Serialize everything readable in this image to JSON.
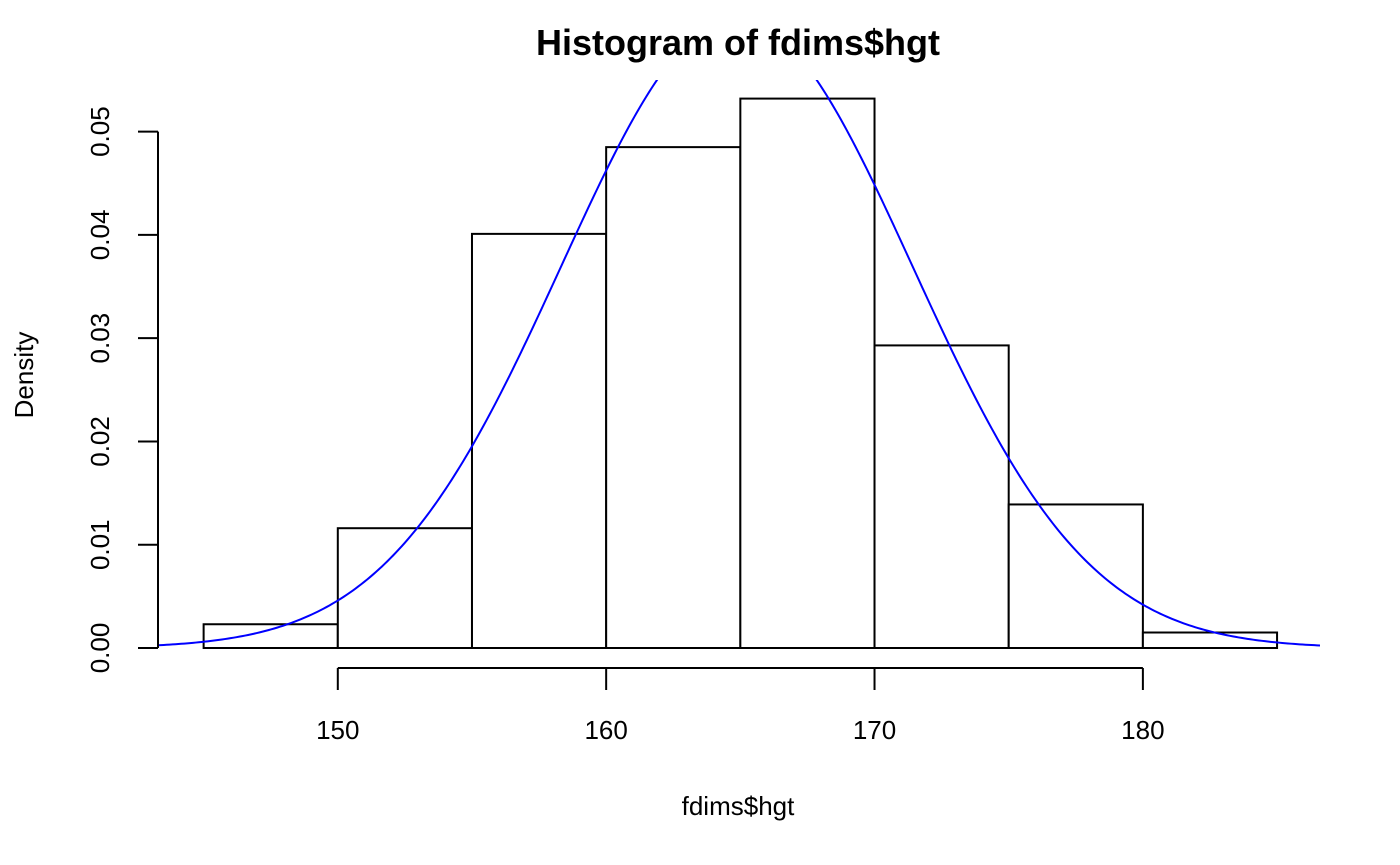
{
  "chart_data": {
    "type": "bar",
    "title": "Histogram of fdims$hgt",
    "xlabel": "fdims$hgt",
    "ylabel": "Density",
    "bins": [
      {
        "x0": 145,
        "x1": 150,
        "density": 0.0023
      },
      {
        "x0": 150,
        "x1": 155,
        "density": 0.0116
      },
      {
        "x0": 155,
        "x1": 160,
        "density": 0.0401
      },
      {
        "x0": 160,
        "x1": 165,
        "density": 0.0485
      },
      {
        "x0": 165,
        "x1": 170,
        "density": 0.0532
      },
      {
        "x0": 170,
        "x1": 175,
        "density": 0.0293
      },
      {
        "x0": 175,
        "x1": 180,
        "density": 0.0139
      },
      {
        "x0": 180,
        "x1": 185,
        "density": 0.0015
      }
    ],
    "x_ticks": [
      "150",
      "160",
      "170",
      "180"
    ],
    "y_ticks": [
      "0.00",
      "0.01",
      "0.02",
      "0.03",
      "0.04",
      "0.05"
    ],
    "xlim": [
      143.3,
      186.6
    ],
    "ylim": [
      0,
      0.055
    ],
    "overlay": {
      "type": "line",
      "description": "normal density curve",
      "mean": 164.87,
      "sd": 6.54,
      "color": "#0000ff"
    },
    "grid": false,
    "legend": "none"
  }
}
